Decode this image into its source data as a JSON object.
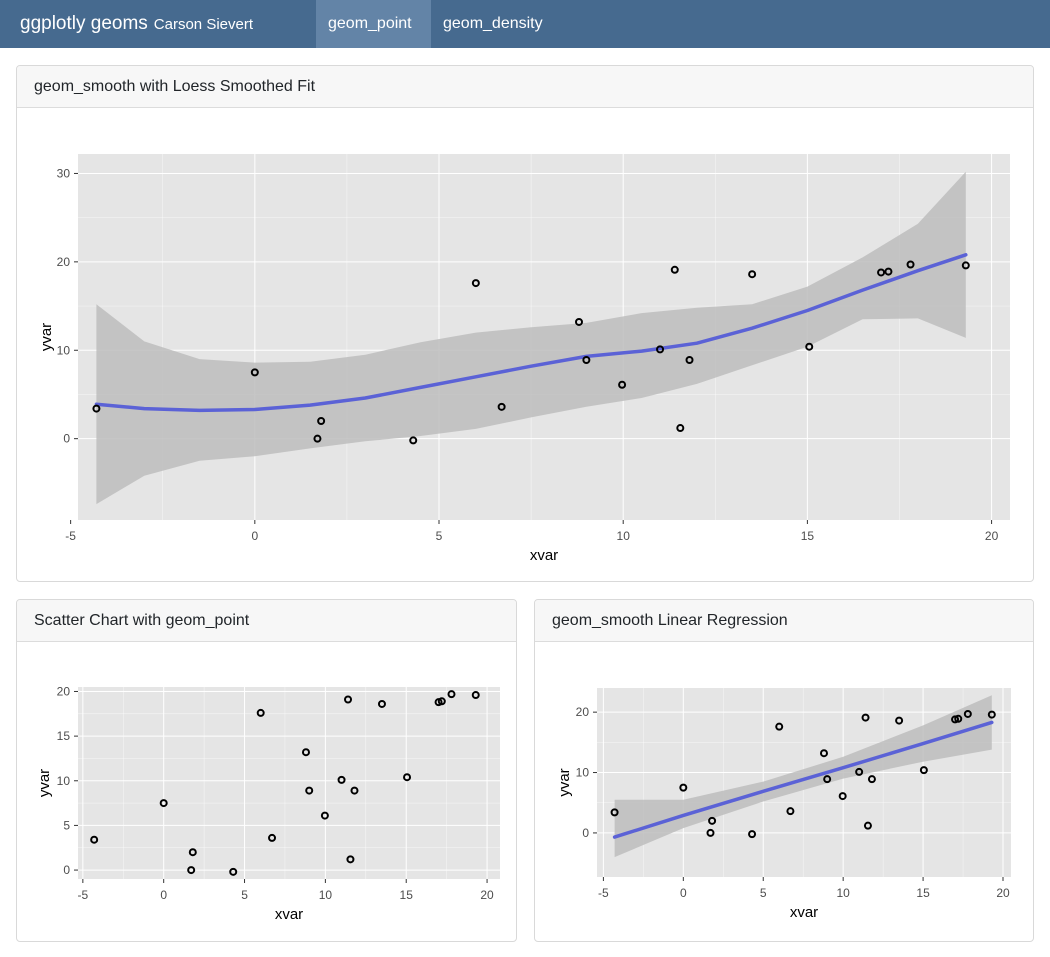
{
  "navbar": {
    "title": "ggplotly geoms",
    "author": "Carson Sievert",
    "tabs": [
      {
        "label": "geom_point",
        "active": true
      },
      {
        "label": "geom_density",
        "active": false
      }
    ],
    "colors": {
      "background": "#466a8f",
      "active_tab": "#6384a7"
    }
  },
  "cards": {
    "loess": {
      "title": "geom_smooth with Loess Smoothed Fit"
    },
    "scatter": {
      "title": "Scatter Chart with geom_point"
    },
    "linear": {
      "title": "geom_smooth Linear Regression"
    }
  },
  "points": [
    {
      "x": -4.3,
      "y": 3.4
    },
    {
      "x": 0.0,
      "y": 7.5
    },
    {
      "x": 1.7,
      "y": 0.0
    },
    {
      "x": 1.8,
      "y": 2.0
    },
    {
      "x": 4.3,
      "y": -0.2
    },
    {
      "x": 6.0,
      "y": 17.6
    },
    {
      "x": 6.7,
      "y": 3.6
    },
    {
      "x": 8.8,
      "y": 13.2
    },
    {
      "x": 9.0,
      "y": 8.9
    },
    {
      "x": 9.97,
      "y": 6.1
    },
    {
      "x": 11.0,
      "y": 10.1
    },
    {
      "x": 11.4,
      "y": 19.1
    },
    {
      "x": 11.55,
      "y": 1.2
    },
    {
      "x": 11.8,
      "y": 8.9
    },
    {
      "x": 13.5,
      "y": 18.6
    },
    {
      "x": 15.05,
      "y": 10.4
    },
    {
      "x": 17.0,
      "y": 18.8
    },
    {
      "x": 17.2,
      "y": 18.9
    },
    {
      "x": 17.8,
      "y": 19.7
    },
    {
      "x": 19.3,
      "y": 19.6
    }
  ],
  "chart_data": [
    {
      "type": "scatter",
      "title": "geom_smooth with Loess Smoothed Fit",
      "xlabel": "xvar",
      "ylabel": "yvar",
      "xlim": [
        -4.8,
        20.5
      ],
      "ylim": [
        -9.2,
        32.2
      ],
      "xticks": [
        -5,
        0,
        5,
        10,
        15,
        20
      ],
      "yticks": [
        0,
        10,
        20,
        30
      ],
      "grid": true,
      "smooth": {
        "method": "loess",
        "x": [
          -4.3,
          -3,
          -1.5,
          0,
          1.5,
          3,
          4.5,
          6,
          7.5,
          9,
          10.5,
          12,
          13.5,
          15,
          16.5,
          18,
          19.3
        ],
        "fit": [
          3.9,
          3.4,
          3.2,
          3.3,
          3.8,
          4.6,
          5.8,
          7.0,
          8.2,
          9.3,
          9.9,
          10.8,
          12.5,
          14.5,
          16.8,
          19.0,
          20.8
        ],
        "lower": [
          -7.4,
          -4.2,
          -2.5,
          -2.0,
          -1.1,
          -0.3,
          0.3,
          1.1,
          2.4,
          3.6,
          4.6,
          6.2,
          8.3,
          10.4,
          13.5,
          13.6,
          11.4
        ],
        "upper": [
          15.2,
          11.0,
          9.0,
          8.6,
          8.7,
          9.5,
          10.9,
          12.0,
          12.6,
          13.1,
          14.2,
          14.8,
          15.2,
          17.2,
          20.5,
          24.3,
          30.2
        ],
        "line_color": "#5b62d6",
        "band_color": "#bdbdbd"
      }
    },
    {
      "type": "scatter",
      "title": "Scatter Chart with geom_point",
      "xlabel": "xvar",
      "ylabel": "yvar",
      "xlim": [
        -5.3,
        20.8
      ],
      "ylim": [
        -1.0,
        20.5
      ],
      "xticks": [
        -5,
        0,
        5,
        10,
        15,
        20
      ],
      "yticks": [
        0,
        5,
        10,
        15,
        20
      ],
      "grid": true
    },
    {
      "type": "scatter",
      "title": "geom_smooth Linear Regression",
      "xlabel": "xvar",
      "ylabel": "yvar",
      "xlim": [
        -5.4,
        20.5
      ],
      "ylim": [
        -7.3,
        24.0
      ],
      "xticks": [
        -5,
        0,
        5,
        10,
        15,
        20
      ],
      "yticks": [
        0,
        10,
        20
      ],
      "grid": true,
      "smooth": {
        "method": "lm",
        "x": [
          -4.3,
          0,
          5,
          10,
          15,
          19.3
        ],
        "fit": [
          -0.7,
          2.9,
          6.9,
          10.8,
          14.8,
          18.3
        ],
        "lower": [
          -4.0,
          0.8,
          5.2,
          9.0,
          11.8,
          13.8
        ],
        "upper": [
          5.5,
          5.5,
          8.5,
          12.6,
          17.8,
          22.8
        ],
        "line_color": "#5b62d6",
        "band_color": "#bdbdbd"
      }
    }
  ],
  "colors": {
    "panel": "#e5e5e5",
    "grid": "#ffffff",
    "point_stroke": "#000000",
    "line": "#5b62d6",
    "band": "#bdbdbd"
  }
}
